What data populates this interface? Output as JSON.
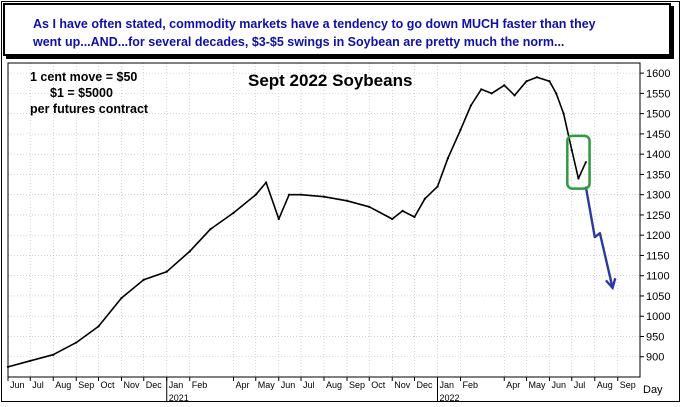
{
  "banner": {
    "line1": "As I have often stated, commodity markets have a tendency to go down MUCH faster than they",
    "line2": "went up...AND...for several decades, $3-$5 swings in Soybean are pretty much the norm..."
  },
  "notes": {
    "line1": "1 cent move = $50",
    "line2": "$1 = $5000",
    "line3": "per futures contract"
  },
  "chart_data": {
    "type": "line",
    "title": "Sept 2022 Soybeans",
    "xlabel": "Day",
    "ylabel": "",
    "ylim": [
      850,
      1625
    ],
    "y_ticks": [
      900,
      950,
      1000,
      1050,
      1100,
      1150,
      1200,
      1250,
      1300,
      1350,
      1400,
      1450,
      1500,
      1550,
      1600
    ],
    "x_ticks": [
      "Jun",
      "Jul",
      "Aug",
      "Sep",
      "Oct",
      "Nov",
      "Dec",
      "Jan",
      "Feb",
      "Apr",
      "May",
      "Jun",
      "Jul",
      "Aug",
      "Sep",
      "Oct",
      "Nov",
      "Dec",
      "Jan",
      "Feb",
      "Apr",
      "May",
      "Jun",
      "Jul",
      "Aug",
      "Sep"
    ],
    "year_labels": [
      "2021",
      "2022"
    ],
    "grid": true,
    "series": [
      {
        "x": [
          "2020-06-01",
          "2020-07-01",
          "2020-08-01",
          "2020-09-01",
          "2020-10-01",
          "2020-11-01",
          "2020-12-01",
          "2021-01-01",
          "2021-02-01",
          "2021-03-01",
          "2021-04-01",
          "2021-05-01",
          "2021-05-15",
          "2021-06-01",
          "2021-06-15",
          "2021-07-01",
          "2021-08-01",
          "2021-09-01",
          "2021-10-01",
          "2021-11-01",
          "2021-11-15",
          "2021-12-01",
          "2021-12-15",
          "2022-01-01",
          "2022-01-15",
          "2022-02-01",
          "2022-02-15",
          "2022-03-01",
          "2022-03-15",
          "2022-04-01",
          "2022-04-15",
          "2022-05-01",
          "2022-05-15",
          "2022-06-01",
          "2022-06-10",
          "2022-06-20",
          "2022-07-01",
          "2022-07-10",
          "2022-07-20"
        ],
        "values": [
          875,
          890,
          905,
          935,
          975,
          1045,
          1090,
          1110,
          1160,
          1215,
          1255,
          1300,
          1330,
          1240,
          1300,
          1300,
          1295,
          1285,
          1270,
          1240,
          1260,
          1245,
          1290,
          1320,
          1390,
          1460,
          1520,
          1560,
          1550,
          1570,
          1545,
          1580,
          1590,
          1580,
          1550,
          1500,
          1410,
          1340,
          1380
        ]
      },
      {
        "name": "",
        "x": [
          "2022-07-20",
          "2022-08-01",
          "2022-08-08",
          "2022-08-25"
        ],
        "values": [
          1320,
          1195,
          1205,
          1070
        ]
      }
    ],
    "annotations": [
      {
        "type": "box",
        "x0": "2022-06-25",
        "x1": "2022-07-25",
        "y0": 1315,
        "y1": 1445,
        "color": "#2e9a3e"
      }
    ],
    "colors": {
      "price": "#000000",
      "projection": "#2b3a9e",
      "box": "#2e9a3e",
      "banner_text": "#1010a8"
    }
  }
}
